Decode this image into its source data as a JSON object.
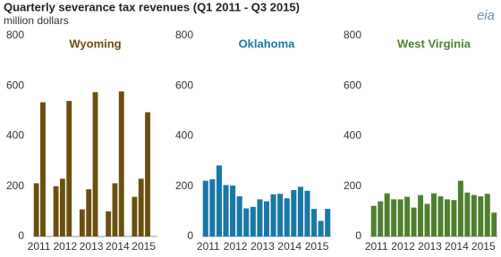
{
  "title": "Quarterly severance tax revenues (Q1 2011 - Q3 2015)",
  "subtitle": "million dollars",
  "logo": "eia",
  "chart_data": [
    {
      "type": "bar",
      "title": "Wyoming",
      "color": "#6b4f10",
      "categories": [
        "2011",
        null,
        null,
        null,
        "2012",
        null,
        null,
        null,
        "2013",
        null,
        null,
        null,
        "2014",
        null,
        null,
        null,
        "2015",
        null,
        null
      ],
      "values": [
        212,
        535,
        null,
        200,
        230,
        540,
        null,
        108,
        188,
        575,
        null,
        100,
        212,
        578,
        null,
        158,
        230,
        495,
        null
      ],
      "ylim": [
        0,
        800
      ],
      "yticks": [
        0,
        200,
        400,
        600,
        800
      ]
    },
    {
      "type": "bar",
      "title": "Oklahoma",
      "color": "#1a78a6",
      "categories": [
        "2011",
        null,
        null,
        null,
        "2012",
        null,
        null,
        null,
        "2013",
        null,
        null,
        null,
        "2014",
        null,
        null,
        null,
        "2015",
        null,
        null
      ],
      "values": [
        222,
        228,
        283,
        205,
        203,
        160,
        112,
        118,
        148,
        140,
        168,
        170,
        152,
        185,
        198,
        182,
        110,
        62,
        110
      ],
      "ylim": [
        0,
        800
      ],
      "yticks": [
        0,
        200,
        400,
        600,
        800
      ]
    },
    {
      "type": "bar",
      "title": "West Virginia",
      "color": "#4f8030",
      "categories": [
        "2011",
        null,
        null,
        null,
        "2012",
        null,
        null,
        null,
        "2013",
        null,
        null,
        null,
        "2014",
        null,
        null,
        null,
        "2015",
        null,
        null
      ],
      "values": [
        122,
        140,
        172,
        148,
        148,
        158,
        115,
        165,
        130,
        172,
        160,
        148,
        145,
        222,
        175,
        165,
        160,
        170,
        95
      ],
      "ylim": [
        0,
        800
      ],
      "yticks": [
        0,
        200,
        400,
        600,
        800
      ]
    }
  ]
}
